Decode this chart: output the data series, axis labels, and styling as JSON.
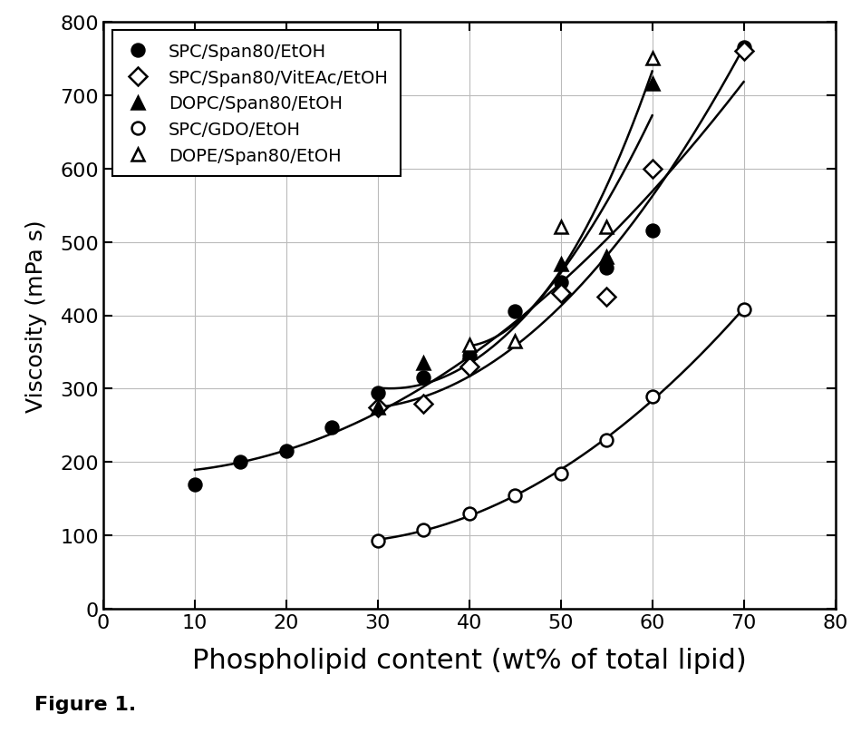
{
  "title": "",
  "xlabel": "Phospholipid content (wt% of total lipid)",
  "ylabel": "Viscosity (mPa s)",
  "xlim": [
    0,
    80
  ],
  "ylim": [
    0,
    800
  ],
  "xticks": [
    0,
    10,
    20,
    30,
    40,
    50,
    60,
    70,
    80
  ],
  "yticks": [
    0,
    100,
    200,
    300,
    400,
    500,
    600,
    700,
    800
  ],
  "figure_caption": "Figure 1.",
  "series": [
    {
      "label": "SPC/Span80/EtOH",
      "marker": "o",
      "filled": true,
      "x": [
        10,
        15,
        20,
        25,
        30,
        35,
        40,
        45,
        50,
        55,
        60,
        70
      ],
      "y": [
        170,
        200,
        215,
        248,
        295,
        315,
        345,
        405,
        445,
        465,
        515,
        765
      ]
    },
    {
      "label": "SPC/Span80/VitEAc/EtOH",
      "marker": "D",
      "filled": false,
      "x": [
        30,
        35,
        40,
        50,
        55,
        60,
        70
      ],
      "y": [
        275,
        280,
        330,
        430,
        425,
        600,
        760
      ]
    },
    {
      "label": "DOPC/Span80/EtOH",
      "marker": "^",
      "filled": true,
      "x": [
        30,
        35,
        40,
        50,
        55,
        60
      ],
      "y": [
        275,
        335,
        350,
        470,
        480,
        715
      ]
    },
    {
      "label": "SPC/GDO/EtOH",
      "marker": "o",
      "filled": false,
      "x": [
        30,
        35,
        40,
        45,
        50,
        55,
        60,
        70
      ],
      "y": [
        93,
        108,
        130,
        155,
        185,
        230,
        290,
        408
      ]
    },
    {
      "label": "DOPE/Span80/EtOH",
      "marker": "^",
      "filled": false,
      "x": [
        40,
        45,
        50,
        55,
        60
      ],
      "y": [
        360,
        365,
        520,
        520,
        750
      ]
    }
  ],
  "background_color": "white",
  "grid_color": "#bbbbbb"
}
